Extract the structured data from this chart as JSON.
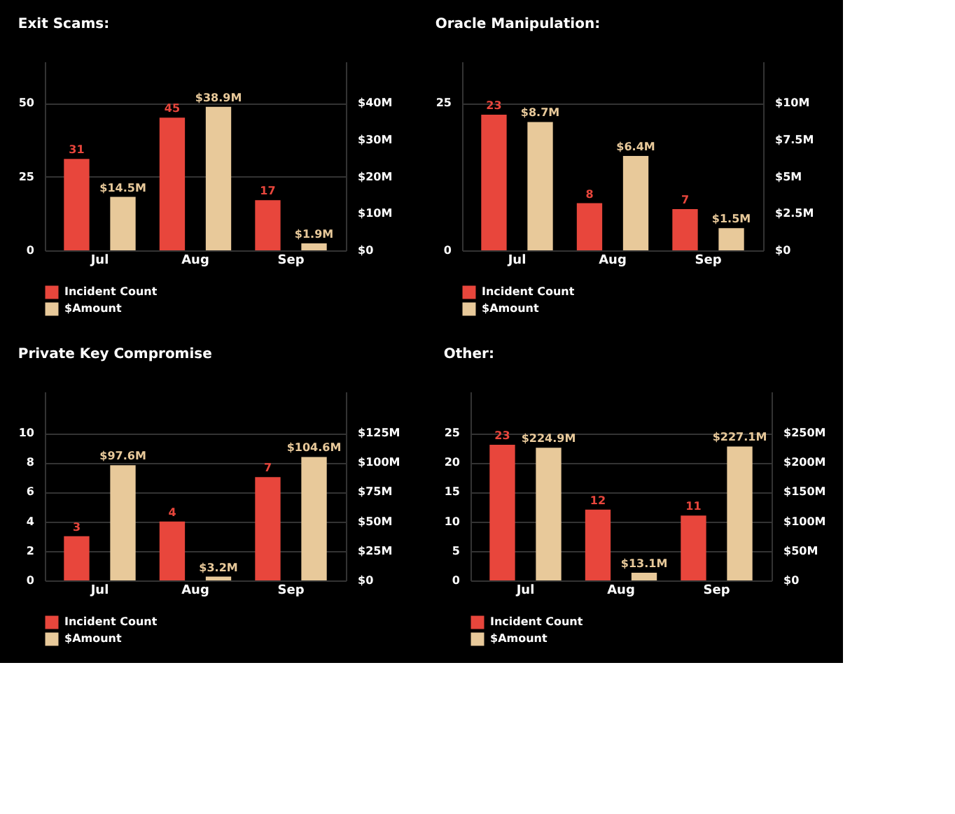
{
  "chart_data": [
    {
      "type": "bar",
      "title": "Exit Scams:",
      "categories": [
        "Jul",
        "Aug",
        "Sep"
      ],
      "ylim": [
        0,
        64
      ],
      "yticks": [
        0,
        25,
        50
      ],
      "y2lim": [
        0,
        51.2
      ],
      "y2ticks": [
        {
          "value": 0,
          "label": "$0"
        },
        {
          "value": 10,
          "label": "$10M"
        },
        {
          "value": 20,
          "label": "$20M"
        },
        {
          "value": 30,
          "label": "$30M"
        },
        {
          "value": 40,
          "label": "$40M"
        }
      ],
      "grid": "y",
      "legend": "bottom left",
      "series": [
        {
          "name": "Incident Count",
          "color": "#e8463c",
          "values": [
            31,
            45,
            17
          ],
          "value_labels": [
            "31",
            "45",
            "17"
          ]
        },
        {
          "name": "$Amount",
          "color": "#e8c99a",
          "axis": "y2",
          "values": [
            14.5,
            38.9,
            1.9
          ],
          "value_labels": [
            "$14.5M",
            "$38.9M",
            "$1.9M"
          ]
        }
      ]
    },
    {
      "type": "bar",
      "title": "Oracle Manipulation:",
      "categories": [
        "Jul",
        "Aug",
        "Sep"
      ],
      "ylim": [
        0,
        32
      ],
      "yticks": [
        0,
        25
      ],
      "y2lim": [
        0,
        12.8
      ],
      "y2ticks": [
        {
          "value": 0,
          "label": "$0"
        },
        {
          "value": 2.5,
          "label": "$2.5M"
        },
        {
          "value": 5,
          "label": "$5M"
        },
        {
          "value": 7.5,
          "label": "$7.5M"
        },
        {
          "value": 10,
          "label": "$10M"
        }
      ],
      "grid": "y",
      "legend": "bottom left",
      "series": [
        {
          "name": "Incident Count",
          "color": "#e8463c",
          "values": [
            23,
            8,
            7
          ],
          "value_labels": [
            "23",
            "8",
            "7"
          ]
        },
        {
          "name": "$Amount",
          "color": "#e8c99a",
          "axis": "y2",
          "values": [
            8.7,
            6.4,
            1.5
          ],
          "value_labels": [
            "$8.7M",
            "$6.4M",
            "$1.5M"
          ]
        }
      ]
    },
    {
      "type": "bar",
      "title": "Private Key Compromise",
      "categories": [
        "Jul",
        "Aug",
        "Sep"
      ],
      "ylim": [
        0,
        12.8
      ],
      "yticks": [
        0,
        2,
        4,
        6,
        8,
        10
      ],
      "y2lim": [
        0,
        160
      ],
      "y2ticks": [
        {
          "value": 0,
          "label": "$0"
        },
        {
          "value": 25,
          "label": "$25M"
        },
        {
          "value": 50,
          "label": "$50M"
        },
        {
          "value": 75,
          "label": "$75M"
        },
        {
          "value": 100,
          "label": "$100M"
        },
        {
          "value": 125,
          "label": "$125M"
        }
      ],
      "grid": "y",
      "legend": "bottom left",
      "series": [
        {
          "name": "Incident Count",
          "color": "#e8463c",
          "values": [
            3,
            4,
            7
          ],
          "value_labels": [
            "3",
            "4",
            "7"
          ]
        },
        {
          "name": "$Amount",
          "color": "#e8c99a",
          "axis": "y2",
          "values": [
            97.6,
            3.2,
            104.6
          ],
          "value_labels": [
            "$97.6M",
            "$3.2M",
            "$104.6M"
          ]
        }
      ]
    },
    {
      "type": "bar",
      "title": "Other:",
      "categories": [
        "Jul",
        "Aug",
        "Sep"
      ],
      "ylim": [
        0,
        32
      ],
      "yticks": [
        0,
        5,
        10,
        15,
        20,
        25
      ],
      "y2lim": [
        0,
        320
      ],
      "y2ticks": [
        {
          "value": 0,
          "label": "$0"
        },
        {
          "value": 50,
          "label": "$50M"
        },
        {
          "value": 100,
          "label": "$100M"
        },
        {
          "value": 150,
          "label": "$150M"
        },
        {
          "value": 200,
          "label": "$200M"
        },
        {
          "value": 250,
          "label": "$250M"
        }
      ],
      "grid": "y",
      "legend": "bottom left",
      "series": [
        {
          "name": "Incident Count",
          "color": "#e8463c",
          "values": [
            23,
            12,
            11
          ],
          "value_labels": [
            "23",
            "12",
            "11"
          ]
        },
        {
          "name": "$Amount",
          "color": "#e8c99a",
          "axis": "y2",
          "values": [
            224.9,
            13.1,
            227.1
          ],
          "value_labels": [
            "$224.9M",
            "$13.1M",
            "$227.1M"
          ]
        }
      ]
    }
  ]
}
